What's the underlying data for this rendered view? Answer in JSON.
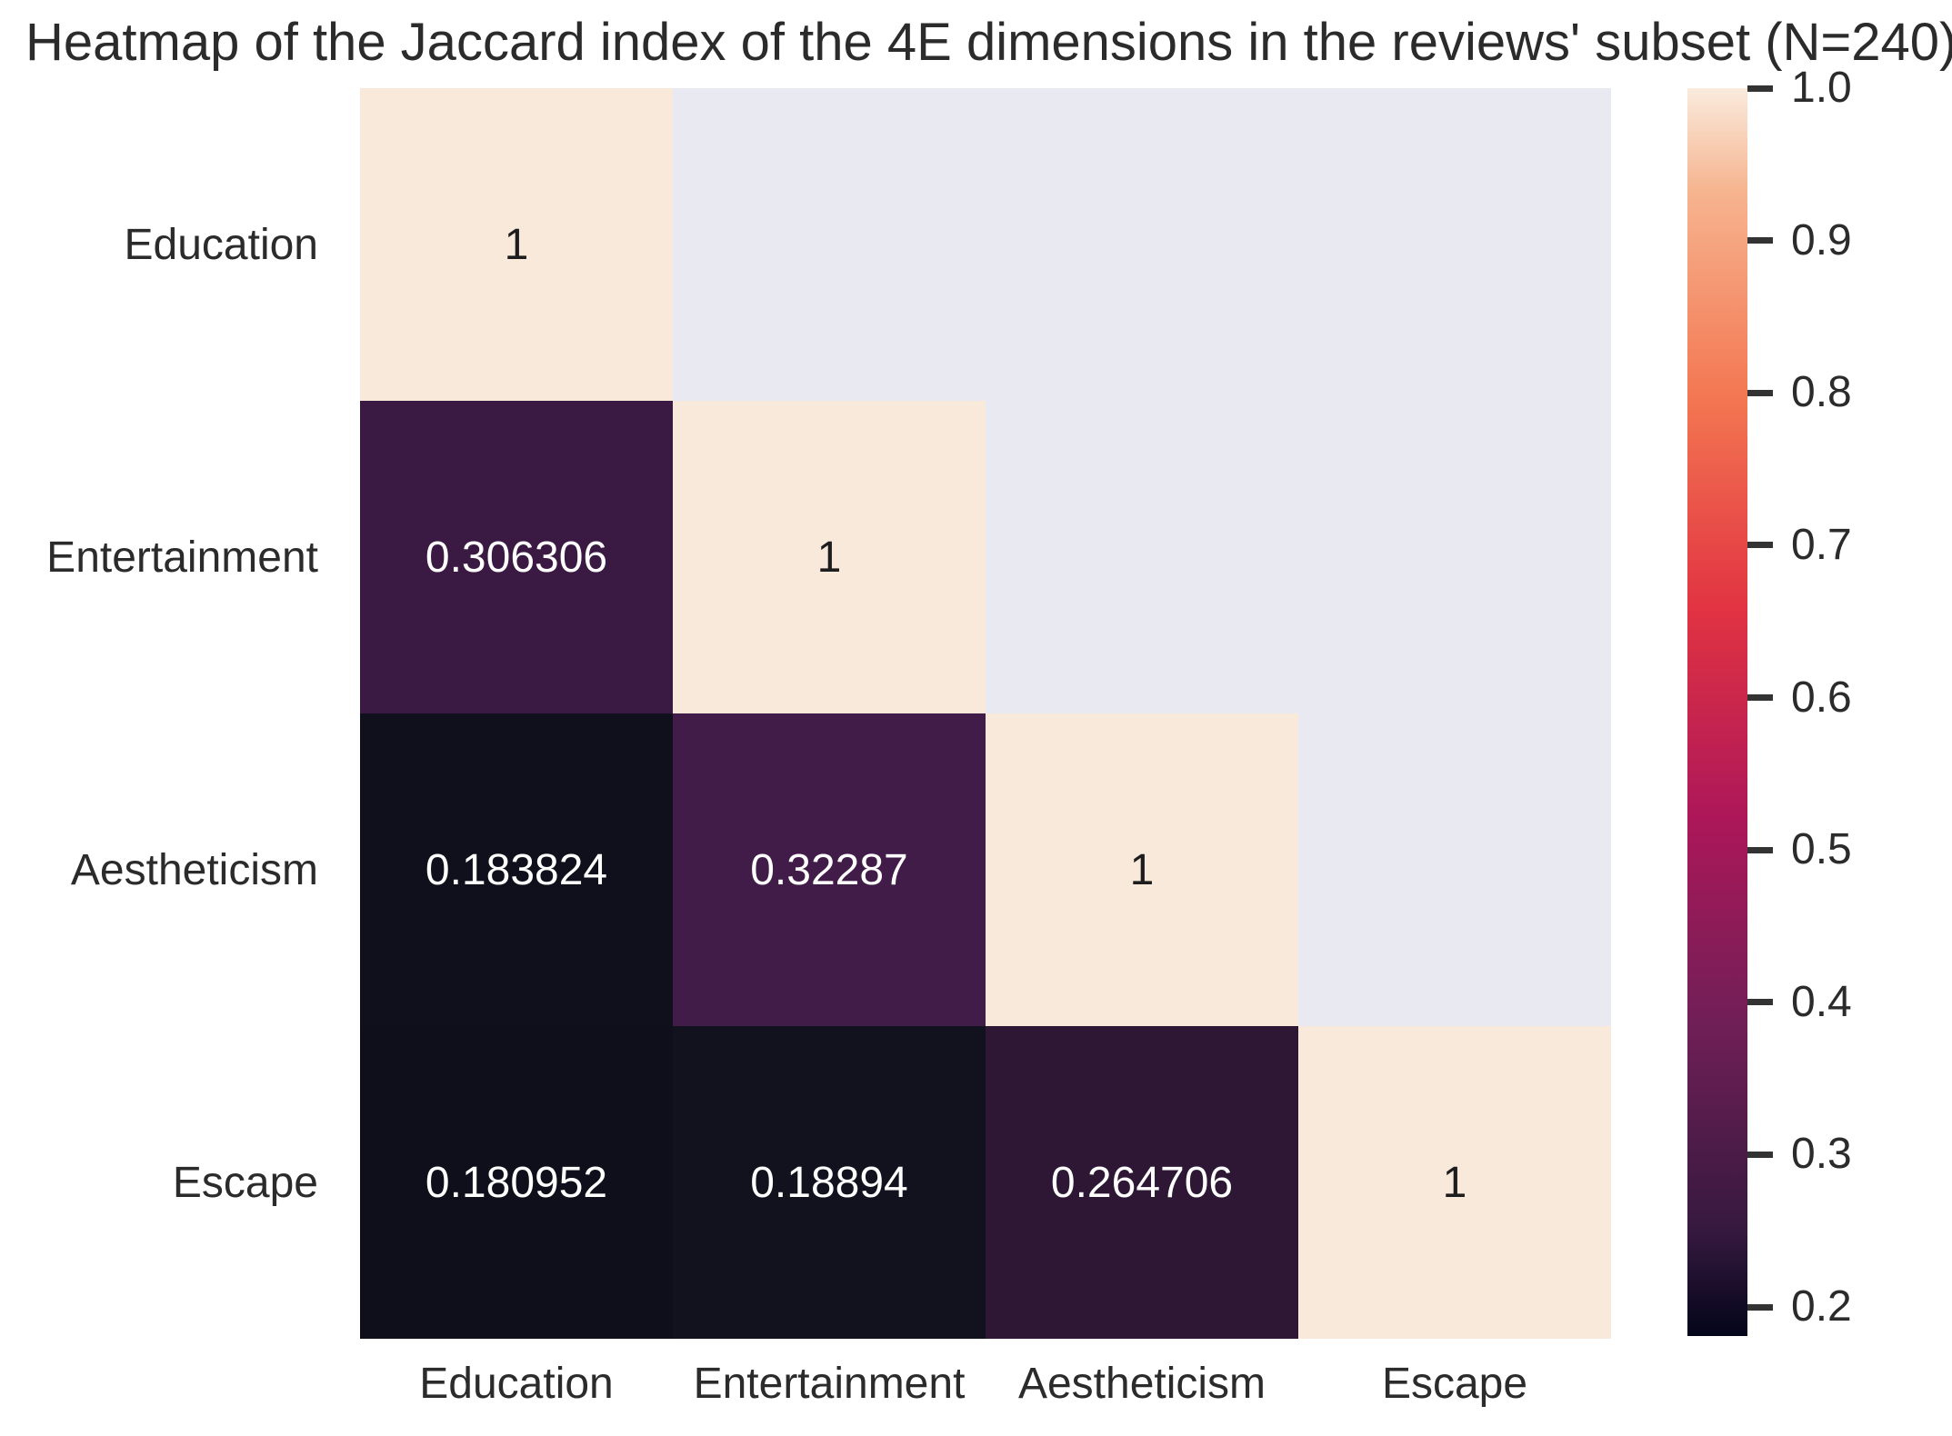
{
  "title": "Heatmap of the Jaccard index of the 4E dimensions in the reviews' subset (N=240)",
  "chart_data": {
    "type": "heatmap",
    "title": "Heatmap of the Jaccard index of the 4E dimensions in the reviews' subset (N=240)",
    "rows": [
      "Education",
      "Entertainment",
      "Aestheticism",
      "Escape"
    ],
    "columns": [
      "Education",
      "Entertainment",
      "Aestheticism",
      "Escape"
    ],
    "values": [
      [
        1,
        null,
        null,
        null
      ],
      [
        0.306306,
        1,
        null,
        null
      ],
      [
        0.183824,
        0.32287,
        1,
        null
      ],
      [
        0.180952,
        0.18894,
        0.264706,
        1
      ]
    ],
    "cell_labels": [
      [
        "1",
        "",
        "",
        ""
      ],
      [
        "0.306306",
        "1",
        "",
        ""
      ],
      [
        "0.183824",
        "0.32287",
        "1",
        ""
      ],
      [
        "0.180952",
        "0.18894",
        "0.264706",
        "1"
      ]
    ],
    "mask": "upper-triangle-hidden",
    "colormap": "rocket",
    "vmin": 0.180952,
    "vmax": 1.0,
    "light_text_threshold": 0.7,
    "colorbar_position": "right",
    "grid": false,
    "colorbar_ticks": [
      {
        "label": "1.0",
        "value": 1.0
      },
      {
        "label": "0.9",
        "value": 0.9
      },
      {
        "label": "0.8",
        "value": 0.8
      },
      {
        "label": "0.7",
        "value": 0.7
      },
      {
        "label": "0.6",
        "value": 0.6
      },
      {
        "label": "0.5",
        "value": 0.5
      },
      {
        "label": "0.4",
        "value": 0.4
      },
      {
        "label": "0.3",
        "value": 0.3
      },
      {
        "label": "0.2",
        "value": 0.2
      }
    ],
    "colors": {
      "figure_background": "#ffffff",
      "masked_cell": "#e9e9f2",
      "diagonal_cell": "#f8e9da",
      "text_on_dark": "#ffffff",
      "text_on_light": "#1d1d1d",
      "axis_text": "#2b2b2b",
      "title_text": "#2b2b2b",
      "tick_mark": "#333333",
      "cell_colors": [
        [
          "#f8e9da",
          null,
          null,
          null
        ],
        [
          "#3a1a43",
          "#f8e9da",
          null,
          null
        ],
        [
          "#10101c",
          "#421c48",
          "#f8e9da",
          null
        ],
        [
          "#0f0f1b",
          "#12111e",
          "#2d1735",
          "#f8e9da"
        ]
      ]
    },
    "colorbar_gradient": [
      {
        "pos": 0,
        "color": "#faebdd"
      },
      {
        "pos": 8.3,
        "color": "#f6b48f"
      },
      {
        "pos": 25.0,
        "color": "#f37651"
      },
      {
        "pos": 41.8,
        "color": "#e13342"
      },
      {
        "pos": 58.4,
        "color": "#ad1759"
      },
      {
        "pos": 75.0,
        "color": "#701f57"
      },
      {
        "pos": 91.7,
        "color": "#35193e"
      },
      {
        "pos": 100,
        "color": "#03051a"
      }
    ]
  }
}
